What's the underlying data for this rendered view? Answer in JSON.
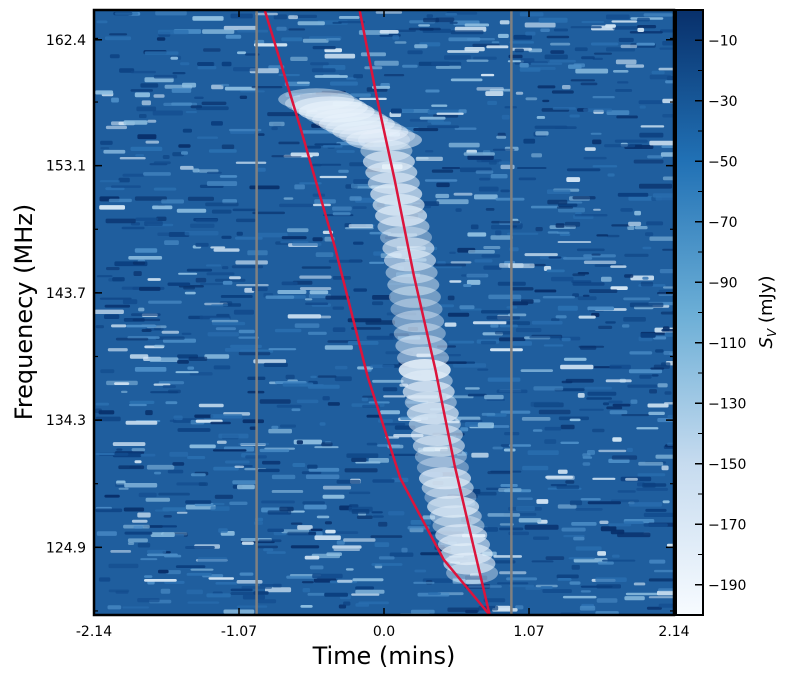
{
  "chart_data": {
    "type": "heatmap",
    "title": "",
    "xlabel": "Time (mins)",
    "ylabel": "Frequenecy (MHz)",
    "xlim": [
      -2.14,
      2.14
    ],
    "ylim": [
      119.9,
      164.6
    ],
    "x_ticks": [
      -2.14,
      -1.07,
      0.0,
      1.07,
      2.14
    ],
    "x_tick_labels": [
      "-2.14",
      "-1.07",
      "0.0",
      "1.07",
      "2.14"
    ],
    "y_ticks": [
      124.9,
      134.3,
      143.7,
      153.1,
      162.4
    ],
    "y_tick_labels": [
      "124.9",
      "134.3",
      "143.7",
      "153.1",
      "162.4"
    ],
    "colorbar": {
      "label_main": "S",
      "label_sub": "V",
      "label_unit": " (mJy)",
      "range": [
        -200,
        0
      ],
      "ticks": [
        -10,
        -30,
        -50,
        -70,
        -90,
        -110,
        -130,
        -150,
        -170,
        -190
      ],
      "tick_labels": [
        "−10",
        "−30",
        "−50",
        "−70",
        "−90",
        "−110",
        "−130",
        "−150",
        "−170",
        "−190"
      ],
      "colormap": "Blues",
      "color_high": "#08306b",
      "color_low": "#f7fbff"
    },
    "vertical_lines": [
      -0.94,
      0.94
    ],
    "vertical_line_color": "#808080",
    "curve_color": "#dc143c",
    "curves": [
      {
        "points": [
          [
            -0.88,
            164.6
          ],
          [
            -0.62,
            156.0
          ],
          [
            -0.36,
            147.0
          ],
          [
            -0.12,
            137.5
          ],
          [
            0.12,
            130.0
          ],
          [
            0.44,
            124.0
          ],
          [
            0.78,
            119.9
          ]
        ]
      },
      {
        "points": [
          [
            -0.18,
            164.6
          ],
          [
            -0.05,
            158.0
          ],
          [
            0.08,
            152.0
          ],
          [
            0.22,
            145.0
          ],
          [
            0.38,
            138.0
          ],
          [
            0.52,
            131.0
          ],
          [
            0.66,
            125.0
          ],
          [
            0.78,
            119.9
          ]
        ]
      }
    ],
    "signal": {
      "description_points": [
        [
          -0.5,
          158.0
        ],
        [
          0.0,
          155.0
        ],
        [
          0.18,
          147.0
        ],
        [
          0.3,
          138.0
        ],
        [
          0.45,
          130.0
        ],
        [
          0.65,
          123.0
        ]
      ]
    }
  }
}
